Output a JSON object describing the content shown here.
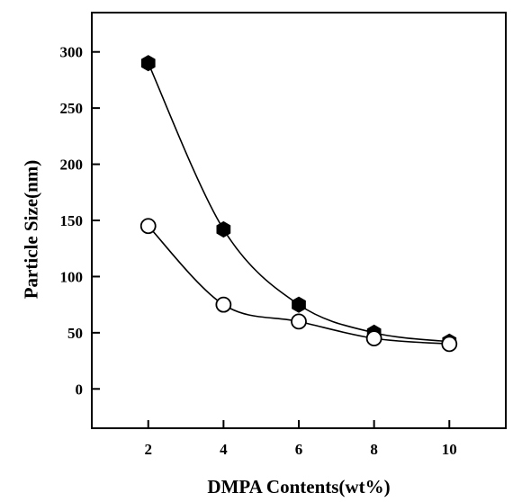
{
  "chart_data": {
    "type": "scatter",
    "title": "",
    "xlabel": "DMPA Contents(wt%)",
    "ylabel": "Particle Size(nm)",
    "xlim": [
      0.5,
      11.5
    ],
    "ylim": [
      -35,
      335
    ],
    "xticks": [
      2,
      4,
      6,
      8,
      10
    ],
    "yticks": [
      0,
      50,
      100,
      150,
      200,
      250,
      300
    ],
    "legend": "none",
    "grid": false,
    "series": [
      {
        "marker": "filled-hexagon",
        "color": "#000000",
        "x": [
          2,
          4,
          6,
          8,
          10
        ],
        "y": [
          290,
          142,
          75,
          50,
          42
        ]
      },
      {
        "marker": "open-circle",
        "color": "#000000",
        "x": [
          2,
          4,
          6,
          8,
          10
        ],
        "y": [
          145,
          75,
          60,
          45,
          40
        ]
      }
    ]
  }
}
